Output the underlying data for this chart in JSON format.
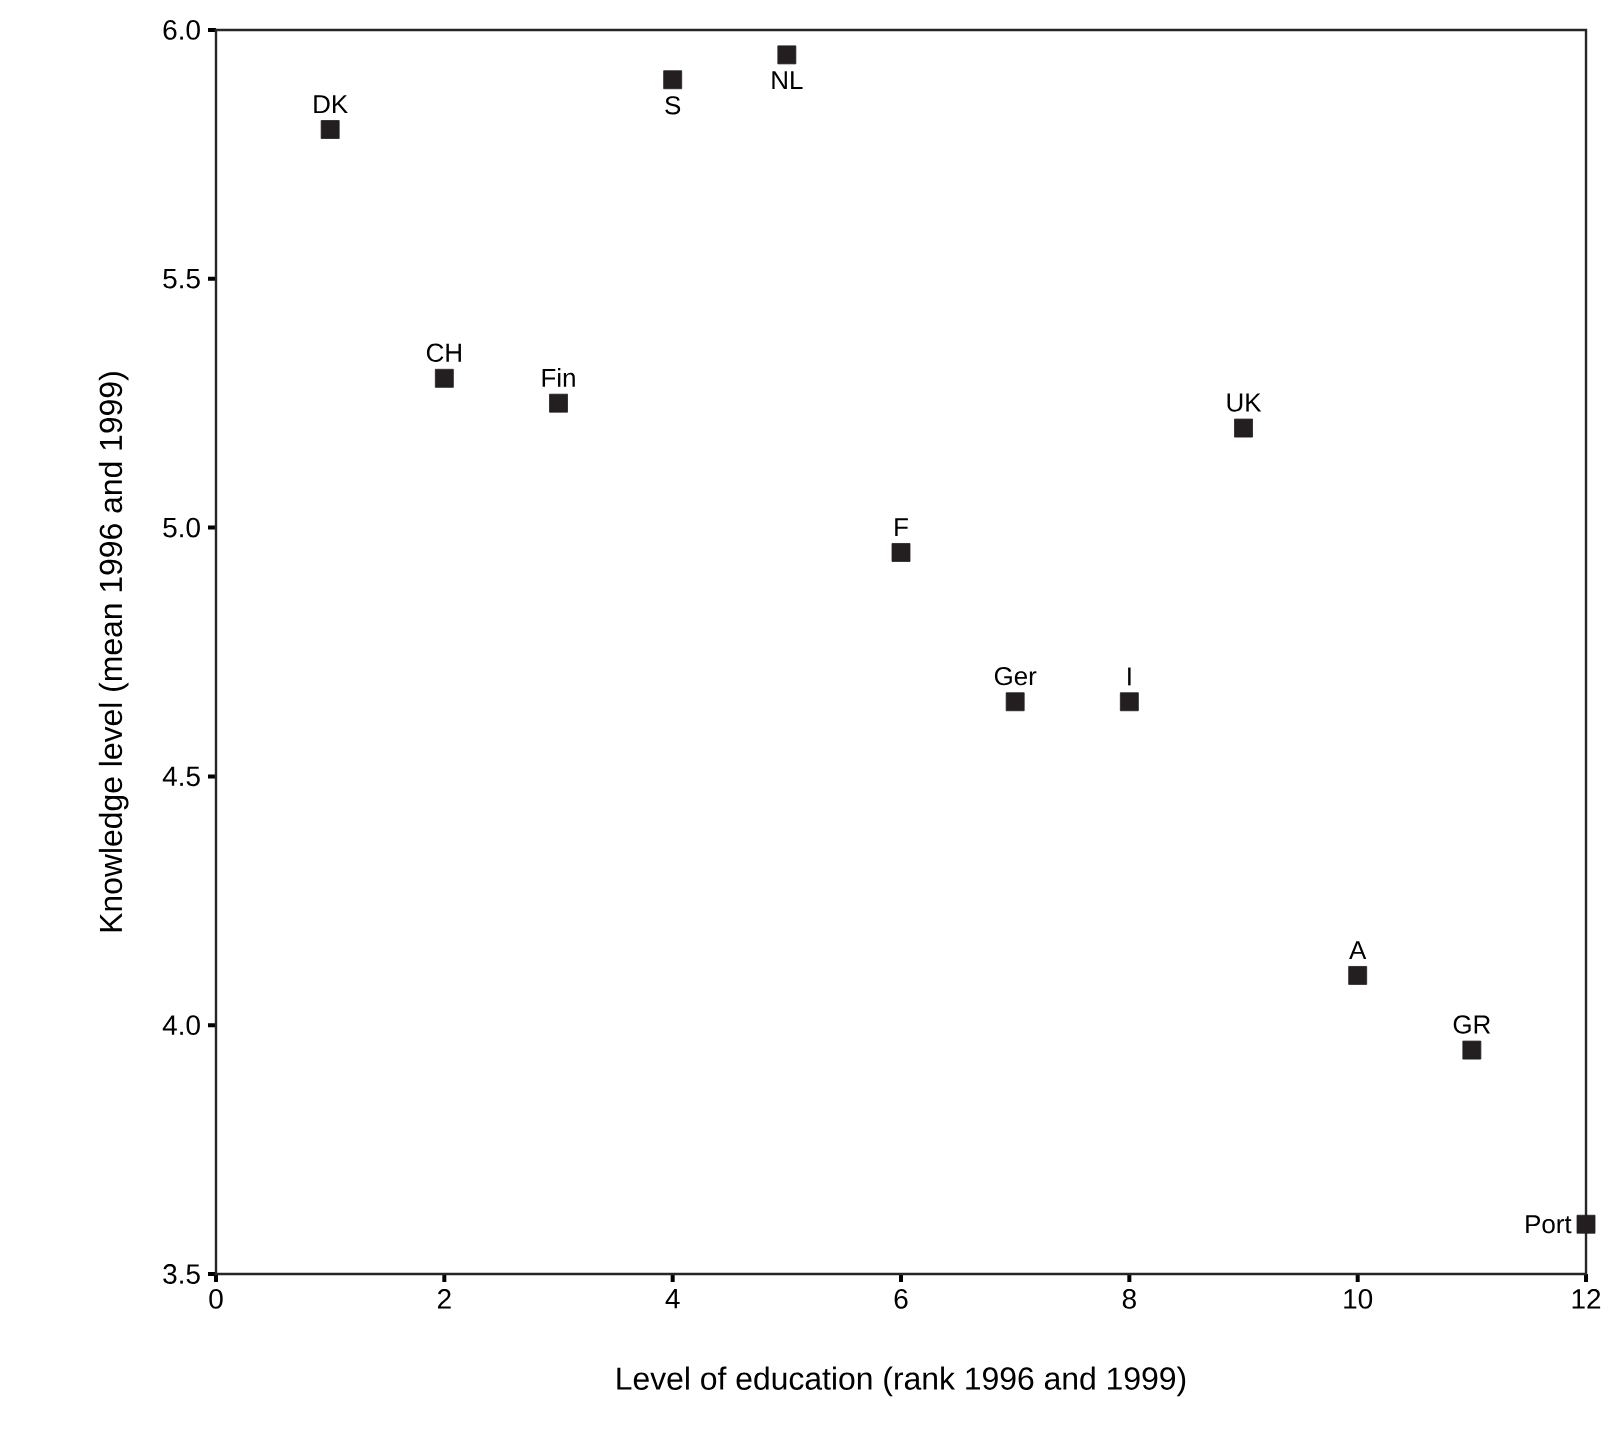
{
  "chart_data": {
    "type": "scatter",
    "xlabel": "Level of education (rank 1996 and 1999)",
    "ylabel": "Knowledge level (mean 1996 and 1999)",
    "x": [
      1,
      2,
      3,
      4,
      5,
      6,
      7,
      8,
      9,
      10,
      11,
      12
    ],
    "values": [
      5.8,
      5.3,
      5.25,
      5.9,
      5.95,
      4.95,
      4.65,
      4.65,
      5.2,
      4.1,
      3.95,
      3.6
    ],
    "color": "#231f20",
    "marker": "square",
    "xlim": [
      0,
      12
    ],
    "xticks": [
      0,
      2,
      4,
      6,
      8,
      10,
      12
    ],
    "ylim": [
      3.5,
      6.0
    ],
    "yticks": [
      {
        "value": 3.5,
        "label": "3.5"
      },
      {
        "value": 4.0,
        "label": "4.0"
      },
      {
        "value": 4.5,
        "label": "4.5"
      },
      {
        "value": 5.0,
        "label": "5.0"
      },
      {
        "value": 5.5,
        "label": "5.5"
      },
      {
        "value": 6.0,
        "label": "6.0"
      }
    ],
    "annotations": [
      {
        "text": "DK",
        "x": 1,
        "y": 5.8
      },
      {
        "text": "CH",
        "x": 2,
        "y": 5.3
      },
      {
        "text": "Fin",
        "x": 3,
        "y": 5.25
      },
      {
        "text": "S",
        "x": 4,
        "y": 5.9
      },
      {
        "text": "NL",
        "x": 5,
        "y": 5.95
      },
      {
        "text": "F",
        "x": 6,
        "y": 4.95
      },
      {
        "text": "Ger",
        "x": 7,
        "y": 4.65
      },
      {
        "text": "I",
        "x": 8,
        "y": 4.65
      },
      {
        "text": "UK",
        "x": 9,
        "y": 5.2
      },
      {
        "text": "A",
        "x": 10,
        "y": 4.1
      },
      {
        "text": "GR",
        "x": 11,
        "y": 3.95
      },
      {
        "text": "Port",
        "x": 12,
        "y": 3.6
      }
    ]
  }
}
